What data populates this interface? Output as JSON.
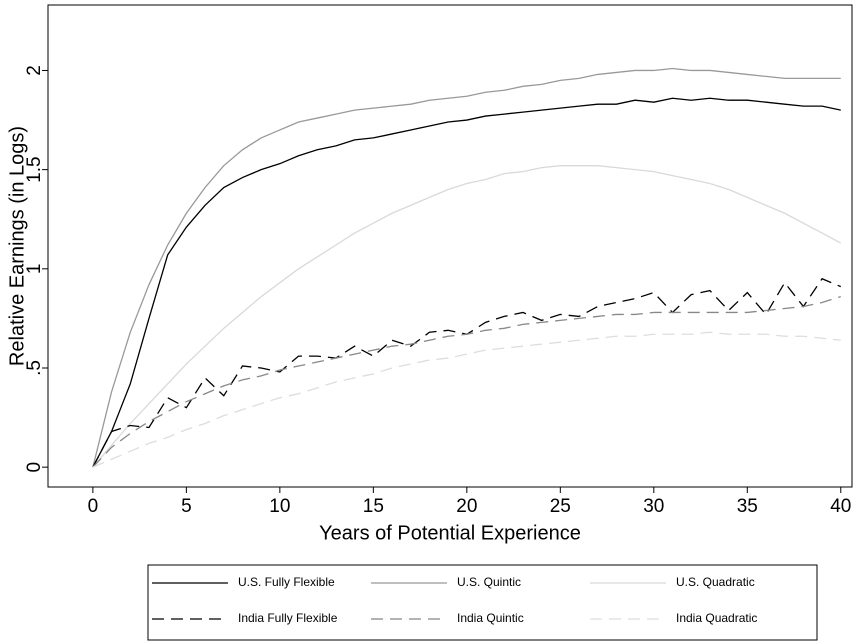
{
  "chart_data": {
    "type": "line",
    "xlabel": "Years of Potential Experience",
    "ylabel": "Relative Earnings (in Logs)",
    "x": [
      0,
      1,
      2,
      3,
      4,
      5,
      6,
      7,
      8,
      9,
      10,
      11,
      12,
      13,
      14,
      15,
      16,
      17,
      18,
      19,
      20,
      21,
      22,
      23,
      24,
      25,
      26,
      27,
      28,
      29,
      30,
      31,
      32,
      33,
      34,
      35,
      36,
      37,
      38,
      39,
      40
    ],
    "xlim": [
      -2.4,
      40.6
    ],
    "xticks": [
      0,
      5,
      10,
      15,
      20,
      25,
      30,
      35,
      40
    ],
    "ylim": [
      -0.1,
      2.33
    ],
    "yticks": [
      0,
      {
        "value": 0.5,
        "label": ".5"
      },
      1,
      1.5,
      2
    ],
    "grid": false,
    "legend": "bottom",
    "series": [
      {
        "name": "U.S. Fully Flexible",
        "color": "#000000",
        "style": "solid",
        "values": [
          0,
          0.18,
          0.42,
          0.75,
          1.07,
          1.21,
          1.32,
          1.41,
          1.46,
          1.5,
          1.53,
          1.57,
          1.6,
          1.62,
          1.65,
          1.66,
          1.68,
          1.7,
          1.72,
          1.74,
          1.75,
          1.77,
          1.78,
          1.79,
          1.8,
          1.81,
          1.82,
          1.83,
          1.83,
          1.85,
          1.84,
          1.86,
          1.85,
          1.86,
          1.85,
          1.85,
          1.84,
          1.83,
          1.82,
          1.82,
          1.8
        ]
      },
      {
        "name": "U.S. Quintic",
        "color": "#999999",
        "style": "solid",
        "values": [
          0,
          0.38,
          0.68,
          0.92,
          1.12,
          1.28,
          1.41,
          1.52,
          1.6,
          1.66,
          1.7,
          1.74,
          1.76,
          1.78,
          1.8,
          1.81,
          1.82,
          1.83,
          1.85,
          1.86,
          1.87,
          1.89,
          1.9,
          1.92,
          1.93,
          1.95,
          1.96,
          1.98,
          1.99,
          2,
          2,
          2.01,
          2,
          2,
          1.99,
          1.98,
          1.97,
          1.96,
          1.96,
          1.96,
          1.96
        ]
      },
      {
        "name": "U.S. Quadratic",
        "color": "#d9d9d9",
        "style": "solid",
        "values": [
          0,
          0.11,
          0.22,
          0.32,
          0.42,
          0.52,
          0.61,
          0.7,
          0.78,
          0.86,
          0.93,
          1,
          1.06,
          1.12,
          1.18,
          1.23,
          1.28,
          1.32,
          1.36,
          1.4,
          1.43,
          1.45,
          1.48,
          1.49,
          1.51,
          1.52,
          1.52,
          1.52,
          1.51,
          1.5,
          1.49,
          1.47,
          1.45,
          1.43,
          1.4,
          1.36,
          1.32,
          1.28,
          1.23,
          1.18,
          1.13
        ]
      },
      {
        "name": "India Fully Flexible",
        "color": "#000000",
        "style": "dashed",
        "values": [
          0,
          0.18,
          0.21,
          0.2,
          0.35,
          0.3,
          0.45,
          0.36,
          0.51,
          0.5,
          0.48,
          0.56,
          0.56,
          0.55,
          0.61,
          0.56,
          0.64,
          0.61,
          0.68,
          0.69,
          0.67,
          0.73,
          0.76,
          0.78,
          0.74,
          0.77,
          0.76,
          0.81,
          0.83,
          0.85,
          0.88,
          0.78,
          0.87,
          0.89,
          0.79,
          0.88,
          0.77,
          0.93,
          0.81,
          0.95,
          0.91
        ]
      },
      {
        "name": "India Quintic",
        "color": "#888888",
        "style": "dashed",
        "values": [
          0,
          0.1,
          0.17,
          0.23,
          0.28,
          0.33,
          0.37,
          0.41,
          0.44,
          0.46,
          0.49,
          0.51,
          0.53,
          0.55,
          0.57,
          0.59,
          0.61,
          0.62,
          0.64,
          0.66,
          0.67,
          0.69,
          0.7,
          0.72,
          0.73,
          0.74,
          0.75,
          0.76,
          0.77,
          0.77,
          0.78,
          0.78,
          0.78,
          0.78,
          0.78,
          0.78,
          0.79,
          0.8,
          0.81,
          0.83,
          0.86
        ]
      },
      {
        "name": "India Quadratic",
        "color": "#dddddd",
        "style": "dashed",
        "values": [
          0,
          0.04,
          0.08,
          0.12,
          0.15,
          0.19,
          0.22,
          0.26,
          0.29,
          0.32,
          0.35,
          0.37,
          0.4,
          0.43,
          0.45,
          0.47,
          0.5,
          0.52,
          0.54,
          0.55,
          0.57,
          0.59,
          0.6,
          0.61,
          0.62,
          0.63,
          0.64,
          0.65,
          0.66,
          0.66,
          0.67,
          0.67,
          0.67,
          0.68,
          0.67,
          0.67,
          0.67,
          0.66,
          0.66,
          0.65,
          0.64
        ]
      }
    ]
  }
}
